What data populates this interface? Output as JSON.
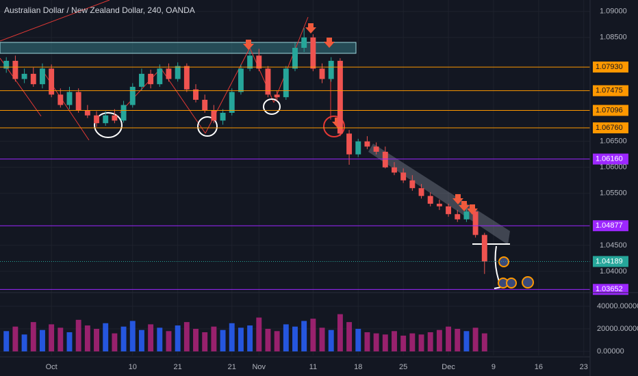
{
  "chart_data": {
    "type": "candlestick",
    "title": "Australian Dollar / New Zealand Dollar, 240, OANDA",
    "x": [
      -4,
      -3,
      -2,
      -1,
      0,
      1,
      2,
      3,
      4,
      5,
      6,
      7,
      8,
      9,
      10,
      11,
      12,
      13,
      14,
      15,
      16,
      17,
      18,
      19,
      20,
      21,
      22,
      23,
      24,
      25,
      26,
      27,
      28,
      29,
      30,
      31,
      32,
      33,
      34,
      35,
      36,
      37,
      38,
      39,
      40,
      41,
      42,
      43,
      44,
      45,
      46,
      47,
      48,
      49
    ],
    "open": [
      1.079,
      1.0805,
      1.077,
      1.078,
      1.076,
      1.079,
      1.074,
      1.072,
      1.0745,
      1.071,
      1.07,
      1.0685,
      1.07,
      1.069,
      1.072,
      1.0755,
      1.078,
      1.076,
      1.079,
      1.077,
      1.0795,
      1.075,
      1.073,
      1.071,
      1.069,
      1.0705,
      1.0745,
      1.079,
      1.0815,
      1.079,
      1.074,
      1.0735,
      1.079,
      1.083,
      1.085,
      1.079,
      1.077,
      1.0805,
      1.0665,
      1.0625,
      1.065,
      1.064,
      1.063,
      1.06,
      1.059,
      1.0575,
      1.056,
      1.0545,
      1.053,
      1.0525,
      1.051,
      1.05,
      1.0515,
      1.047
    ],
    "high": [
      1.0812,
      1.0815,
      1.079,
      1.0792,
      1.08,
      1.0798,
      1.0752,
      1.0755,
      1.0752,
      1.072,
      1.0708,
      1.0708,
      1.0712,
      1.0728,
      1.0762,
      1.079,
      1.0788,
      1.0798,
      1.08,
      1.0802,
      1.08,
      1.076,
      1.074,
      1.072,
      1.0712,
      1.0752,
      1.0798,
      1.0825,
      1.0828,
      1.0795,
      1.0748,
      1.0795,
      1.084,
      1.0868,
      1.0856,
      1.08,
      1.0812,
      1.081,
      1.0672,
      1.0655,
      1.066,
      1.0648,
      1.064,
      1.061,
      1.0598,
      1.0585,
      1.0568,
      1.0552,
      1.0538,
      1.053,
      1.0518,
      1.052,
      1.052,
      1.0474
    ],
    "low": [
      1.0782,
      1.0765,
      1.0762,
      1.0755,
      1.0752,
      1.0735,
      1.0715,
      1.0712,
      1.0705,
      1.0695,
      1.0678,
      1.068,
      1.0685,
      1.0686,
      1.0715,
      1.0748,
      1.0752,
      1.0755,
      1.0765,
      1.0765,
      1.0745,
      1.0725,
      1.0705,
      1.0685,
      1.0682,
      1.07,
      1.074,
      1.0785,
      1.0785,
      1.0735,
      1.0728,
      1.073,
      1.0785,
      1.0822,
      1.0785,
      1.0762,
      1.0765,
      1.066,
      1.0605,
      1.062,
      1.0635,
      1.0625,
      1.0598,
      1.0585,
      1.057,
      1.0555,
      1.054,
      1.0525,
      1.0518,
      1.0505,
      1.0495,
      1.0495,
      1.0465,
      1.0395
    ],
    "close": [
      1.0805,
      1.077,
      1.078,
      1.076,
      1.079,
      1.074,
      1.072,
      1.0745,
      1.071,
      1.07,
      1.0685,
      1.07,
      1.069,
      1.072,
      1.0755,
      1.078,
      1.076,
      1.079,
      1.077,
      1.0795,
      1.075,
      1.073,
      1.071,
      1.069,
      1.0705,
      1.0745,
      1.079,
      1.0815,
      1.079,
      1.074,
      1.0735,
      1.079,
      1.083,
      1.085,
      1.079,
      1.077,
      1.0805,
      1.0665,
      1.0625,
      1.065,
      1.064,
      1.063,
      1.06,
      1.059,
      1.0575,
      1.056,
      1.0545,
      1.053,
      1.0525,
      1.051,
      1.05,
      1.0515,
      1.047,
      1.0419
    ],
    "up_color": "#26a69a",
    "down_color": "#ef5350",
    "xlim": [
      -4.7,
      60.7
    ],
    "xticks": [
      {
        "value": 1,
        "label": "Oct"
      },
      10,
      21,
      {
        "value": 15,
        "label": "21"
      },
      {
        "value": 24,
        "label": "Nov"
      },
      {
        "value": 30,
        "label": "11"
      },
      {
        "value": 35,
        "label": "18"
      },
      {
        "value": 40,
        "label": "25"
      },
      {
        "value": 45,
        "label": "Dec"
      },
      {
        "value": 50,
        "label": "9"
      },
      {
        "value": 55,
        "label": "16"
      },
      {
        "value": 60,
        "label": "23"
      }
    ],
    "ylim": [
      1.0363,
      1.0922
    ],
    "yticks": [
      {
        "value": 1.09,
        "label": "1.09000"
      },
      {
        "value": 1.085,
        "label": "1.08500"
      },
      {
        "value": 1.065,
        "label": "1.06500"
      },
      {
        "value": 1.06,
        "label": "1.06000"
      },
      {
        "value": 1.055,
        "label": "1.05500"
      },
      {
        "value": 1.045,
        "label": "1.04500"
      },
      {
        "value": 1.04,
        "label": "1.04000"
      }
    ],
    "levels": [
      {
        "value": 1.0793,
        "label": "1.07930",
        "color": "#ff9800"
      },
      {
        "value": 1.07475,
        "label": "1.07475",
        "color": "#ff9800"
      },
      {
        "value": 1.07096,
        "label": "1.07096",
        "color": "#ff9800"
      },
      {
        "value": 1.0676,
        "label": "1.06760",
        "color": "#ff9800"
      },
      {
        "value": 1.0616,
        "label": "1.06160",
        "color": "#9c27ff"
      },
      {
        "value": 1.04877,
        "label": "1.04877",
        "color": "#9c27ff"
      },
      {
        "value": 1.03652,
        "label": "1.03652",
        "color": "#9c27ff"
      },
      {
        "value": 1.04189,
        "label": "1.04189",
        "color": "#26a69a"
      }
    ],
    "volume": {
      "values": [
        18000,
        22000,
        15000,
        26000,
        19000,
        24000,
        21000,
        17000,
        28000,
        23000,
        20000,
        25000,
        16000,
        22000,
        27000,
        19000,
        24000,
        21000,
        18000,
        23000,
        26000,
        20000,
        17000,
        22000,
        19000,
        25000,
        21000,
        23000,
        30000,
        20000,
        18000,
        24000,
        22000,
        27000,
        29000,
        21000,
        19000,
        33000,
        26000,
        20000,
        17000,
        16000,
        15000,
        18000,
        14000,
        16000,
        15000,
        17000,
        19000,
        22000,
        20000,
        18000,
        21000,
        16000
      ],
      "up_color": "#2962ff",
      "down_color": "#b0237a",
      "ylim": [
        -3600,
        50900
      ],
      "yticks": [
        {
          "value": 40000,
          "label": "40000.00000"
        },
        {
          "value": 20000,
          "label": "20000.00000"
        },
        {
          "value": 0,
          "label": "0.00000"
        }
      ]
    }
  }
}
